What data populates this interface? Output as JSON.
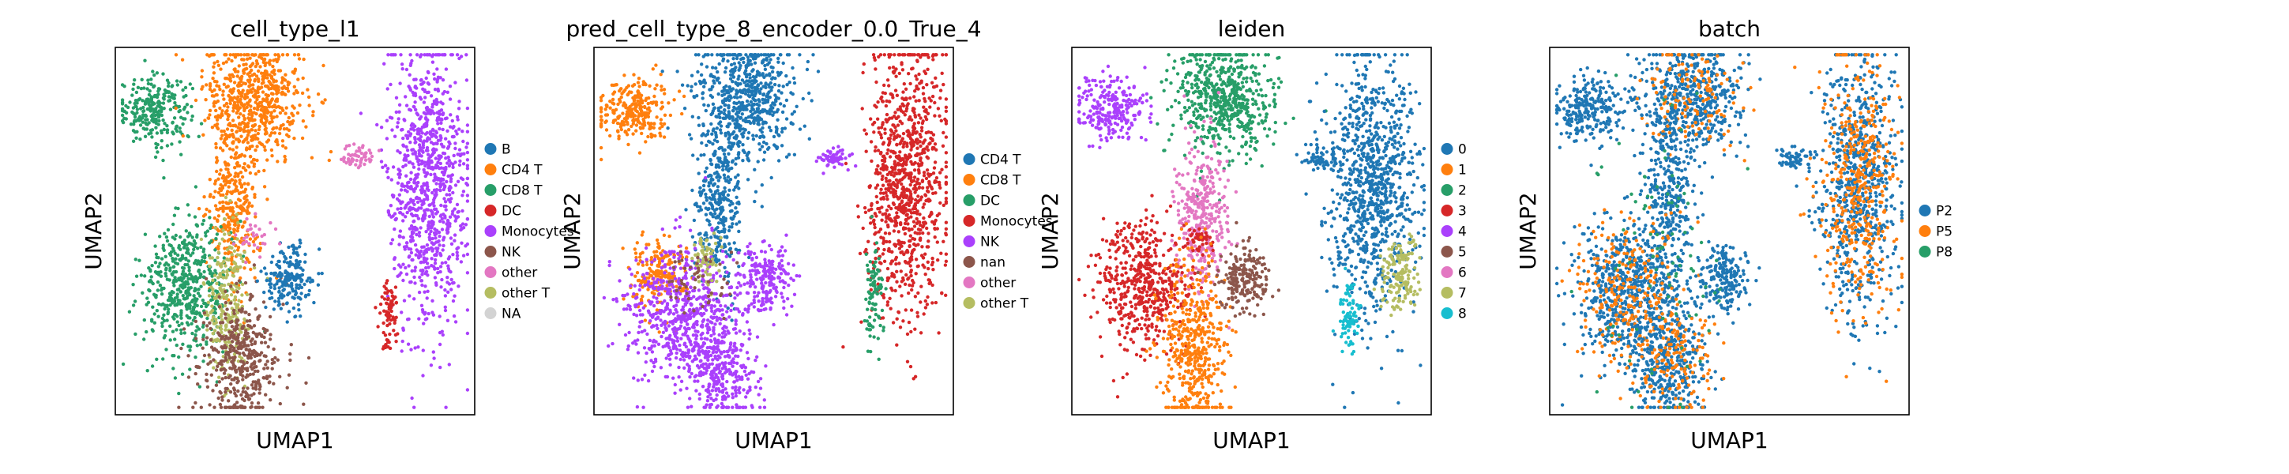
{
  "chart_data": [
    {
      "type": "scatter",
      "title": "cell_type_l1",
      "xlabel": "UMAP1",
      "ylabel": "UMAP2",
      "ticks": "none",
      "legend_position": "right",
      "legend": [
        {
          "label": "B",
          "color": "#1f77b4"
        },
        {
          "label": "CD4 T",
          "color": "#ff7f0e"
        },
        {
          "label": "CD8 T",
          "color": "#279e68"
        },
        {
          "label": "DC",
          "color": "#d62728"
        },
        {
          "label": "Monocytes",
          "color": "#aa40fc"
        },
        {
          "label": "NK",
          "color": "#8c564b"
        },
        {
          "label": "other",
          "color": "#e377c2"
        },
        {
          "label": "other T",
          "color": "#b5bd61"
        },
        {
          "label": "NA",
          "color": "#d3d3d3"
        }
      ],
      "clusters": [
        {
          "label": "CD8 T",
          "color": "#279e68",
          "x": 0.11,
          "y": 0.83,
          "sx": 0.05,
          "sy": 0.045,
          "n": 260
        },
        {
          "label": "CD4 T",
          "color": "#ff7f0e",
          "x": 0.39,
          "y": 0.86,
          "sx": 0.07,
          "sy": 0.08,
          "n": 600
        },
        {
          "label": "CD4 T",
          "color": "#ff7f0e",
          "x": 0.33,
          "y": 0.58,
          "sx": 0.035,
          "sy": 0.12,
          "n": 360
        },
        {
          "label": "CD8 T",
          "color": "#279e68",
          "x": 0.2,
          "y": 0.35,
          "sx": 0.06,
          "sy": 0.09,
          "n": 520
        },
        {
          "label": "other T",
          "color": "#b5bd61",
          "x": 0.31,
          "y": 0.3,
          "sx": 0.03,
          "sy": 0.1,
          "n": 250
        },
        {
          "label": "NK",
          "color": "#8c564b",
          "x": 0.35,
          "y": 0.15,
          "sx": 0.055,
          "sy": 0.09,
          "n": 420
        },
        {
          "label": "B",
          "color": "#1f77b4",
          "x": 0.48,
          "y": 0.37,
          "sx": 0.035,
          "sy": 0.045,
          "n": 200
        },
        {
          "label": "Monocytes",
          "color": "#aa40fc",
          "x": 0.87,
          "y": 0.63,
          "sx": 0.055,
          "sy": 0.18,
          "n": 950
        },
        {
          "label": "DC",
          "color": "#d62728",
          "x": 0.76,
          "y": 0.27,
          "sx": 0.012,
          "sy": 0.05,
          "n": 80
        },
        {
          "label": "other",
          "color": "#e377c2",
          "x": 0.67,
          "y": 0.7,
          "sx": 0.025,
          "sy": 0.015,
          "n": 60
        },
        {
          "label": "other",
          "color": "#e377c2",
          "x": 0.39,
          "y": 0.49,
          "sx": 0.03,
          "sy": 0.03,
          "n": 30
        }
      ]
    },
    {
      "type": "scatter",
      "title": "pred_cell_type_8_encoder_0.0_True_4",
      "xlabel": "UMAP1",
      "ylabel": "UMAP2",
      "ticks": "none",
      "legend_position": "right",
      "legend": [
        {
          "label": "CD4 T",
          "color": "#1f77b4"
        },
        {
          "label": "CD8 T",
          "color": "#ff7f0e"
        },
        {
          "label": "DC",
          "color": "#279e68"
        },
        {
          "label": "Monocytes",
          "color": "#d62728"
        },
        {
          "label": "NK",
          "color": "#aa40fc"
        },
        {
          "label": "nan",
          "color": "#8c564b"
        },
        {
          "label": "other",
          "color": "#e377c2"
        },
        {
          "label": "other T",
          "color": "#b5bd61"
        }
      ],
      "clusters": [
        {
          "label": "CD8 T",
          "color": "#ff7f0e",
          "x": 0.11,
          "y": 0.83,
          "sx": 0.05,
          "sy": 0.045,
          "n": 260
        },
        {
          "label": "CD4 T",
          "color": "#1f77b4",
          "x": 0.42,
          "y": 0.86,
          "sx": 0.07,
          "sy": 0.08,
          "n": 600
        },
        {
          "label": "CD4 T",
          "color": "#1f77b4",
          "x": 0.35,
          "y": 0.58,
          "sx": 0.035,
          "sy": 0.12,
          "n": 360
        },
        {
          "label": "CD8 T",
          "color": "#ff7f0e",
          "x": 0.17,
          "y": 0.38,
          "sx": 0.04,
          "sy": 0.05,
          "n": 200
        },
        {
          "label": "NK",
          "color": "#aa40fc",
          "x": 0.25,
          "y": 0.28,
          "sx": 0.08,
          "sy": 0.09,
          "n": 650
        },
        {
          "label": "NK",
          "color": "#aa40fc",
          "x": 0.35,
          "y": 0.12,
          "sx": 0.05,
          "sy": 0.07,
          "n": 300
        },
        {
          "label": "other T",
          "color": "#b5bd61",
          "x": 0.31,
          "y": 0.42,
          "sx": 0.02,
          "sy": 0.04,
          "n": 60
        },
        {
          "label": "NK",
          "color": "#aa40fc",
          "x": 0.48,
          "y": 0.37,
          "sx": 0.035,
          "sy": 0.045,
          "n": 200
        },
        {
          "label": "Monocytes",
          "color": "#d62728",
          "x": 0.87,
          "y": 0.63,
          "sx": 0.055,
          "sy": 0.18,
          "n": 950
        },
        {
          "label": "DC",
          "color": "#279e68",
          "x": 0.78,
          "y": 0.33,
          "sx": 0.015,
          "sy": 0.07,
          "n": 90
        },
        {
          "label": "NK",
          "color": "#aa40fc",
          "x": 0.67,
          "y": 0.7,
          "sx": 0.025,
          "sy": 0.015,
          "n": 60
        },
        {
          "label": "nan",
          "color": "#8c564b",
          "x": 0.28,
          "y": 0.36,
          "sx": 0.05,
          "sy": 0.05,
          "n": 50
        }
      ]
    },
    {
      "type": "scatter",
      "title": "leiden",
      "xlabel": "UMAP1",
      "ylabel": "UMAP2",
      "ticks": "none",
      "legend_position": "right",
      "legend": [
        {
          "label": "0",
          "color": "#1f77b4"
        },
        {
          "label": "1",
          "color": "#ff7f0e"
        },
        {
          "label": "2",
          "color": "#279e68"
        },
        {
          "label": "3",
          "color": "#d62728"
        },
        {
          "label": "4",
          "color": "#aa40fc"
        },
        {
          "label": "5",
          "color": "#8c564b"
        },
        {
          "label": "6",
          "color": "#e377c2"
        },
        {
          "label": "7",
          "color": "#b5bd61"
        },
        {
          "label": "8",
          "color": "#17becf"
        }
      ],
      "clusters": [
        {
          "label": "4",
          "color": "#aa40fc",
          "x": 0.11,
          "y": 0.83,
          "sx": 0.05,
          "sy": 0.045,
          "n": 260
        },
        {
          "label": "2",
          "color": "#279e68",
          "x": 0.42,
          "y": 0.86,
          "sx": 0.07,
          "sy": 0.08,
          "n": 600
        },
        {
          "label": "6",
          "color": "#e377c2",
          "x": 0.36,
          "y": 0.55,
          "sx": 0.035,
          "sy": 0.1,
          "n": 360
        },
        {
          "label": "3",
          "color": "#d62728",
          "x": 0.2,
          "y": 0.35,
          "sx": 0.06,
          "sy": 0.09,
          "n": 520
        },
        {
          "label": "3",
          "color": "#d62728",
          "x": 0.36,
          "y": 0.48,
          "sx": 0.015,
          "sy": 0.02,
          "n": 40
        },
        {
          "label": "1",
          "color": "#ff7f0e",
          "x": 0.34,
          "y": 0.18,
          "sx": 0.045,
          "sy": 0.12,
          "n": 480
        },
        {
          "label": "5",
          "color": "#8c564b",
          "x": 0.48,
          "y": 0.37,
          "sx": 0.035,
          "sy": 0.045,
          "n": 200
        },
        {
          "label": "0",
          "color": "#1f77b4",
          "x": 0.84,
          "y": 0.63,
          "sx": 0.06,
          "sy": 0.18,
          "n": 950
        },
        {
          "label": "0",
          "color": "#1f77b4",
          "x": 0.7,
          "y": 0.7,
          "sx": 0.03,
          "sy": 0.02,
          "n": 60
        },
        {
          "label": "7",
          "color": "#b5bd61",
          "x": 0.91,
          "y": 0.38,
          "sx": 0.025,
          "sy": 0.05,
          "n": 150
        },
        {
          "label": "8",
          "color": "#17becf",
          "x": 0.77,
          "y": 0.27,
          "sx": 0.015,
          "sy": 0.05,
          "n": 80
        }
      ]
    },
    {
      "type": "scatter",
      "title": "batch",
      "xlabel": "UMAP1",
      "ylabel": "UMAP2",
      "ticks": "none",
      "legend_position": "right",
      "legend": [
        {
          "label": "P2",
          "color": "#1f77b4"
        },
        {
          "label": "P5",
          "color": "#ff7f0e"
        },
        {
          "label": "P8",
          "color": "#279e68"
        }
      ],
      "clusters": [
        {
          "label": "P2",
          "color": "#1f77b4",
          "x": 0.11,
          "y": 0.83,
          "sx": 0.05,
          "sy": 0.045,
          "n": 260
        },
        {
          "label": "P2",
          "color": "#1f77b4",
          "x": 0.39,
          "y": 0.86,
          "sx": 0.07,
          "sy": 0.08,
          "n": 520
        },
        {
          "label": "P5",
          "color": "#ff7f0e",
          "x": 0.39,
          "y": 0.86,
          "sx": 0.07,
          "sy": 0.08,
          "n": 140
        },
        {
          "label": "P2",
          "color": "#1f77b4",
          "x": 0.33,
          "y": 0.58,
          "sx": 0.035,
          "sy": 0.12,
          "n": 320
        },
        {
          "label": "P2",
          "color": "#1f77b4",
          "x": 0.22,
          "y": 0.33,
          "sx": 0.07,
          "sy": 0.1,
          "n": 620
        },
        {
          "label": "P5",
          "color": "#ff7f0e",
          "x": 0.22,
          "y": 0.33,
          "sx": 0.07,
          "sy": 0.1,
          "n": 260
        },
        {
          "label": "P2",
          "color": "#1f77b4",
          "x": 0.34,
          "y": 0.15,
          "sx": 0.05,
          "sy": 0.09,
          "n": 360
        },
        {
          "label": "P5",
          "color": "#ff7f0e",
          "x": 0.34,
          "y": 0.15,
          "sx": 0.05,
          "sy": 0.09,
          "n": 140
        },
        {
          "label": "P2",
          "color": "#1f77b4",
          "x": 0.48,
          "y": 0.37,
          "sx": 0.035,
          "sy": 0.045,
          "n": 200
        },
        {
          "label": "P2",
          "color": "#1f77b4",
          "x": 0.86,
          "y": 0.63,
          "sx": 0.055,
          "sy": 0.18,
          "n": 700
        },
        {
          "label": "P5",
          "color": "#ff7f0e",
          "x": 0.86,
          "y": 0.63,
          "sx": 0.055,
          "sy": 0.18,
          "n": 420
        },
        {
          "label": "P2",
          "color": "#1f77b4",
          "x": 0.68,
          "y": 0.7,
          "sx": 0.025,
          "sy": 0.015,
          "n": 60
        },
        {
          "label": "P8",
          "color": "#279e68",
          "x": 0.3,
          "y": 0.4,
          "sx": 0.1,
          "sy": 0.2,
          "n": 90
        }
      ]
    }
  ]
}
